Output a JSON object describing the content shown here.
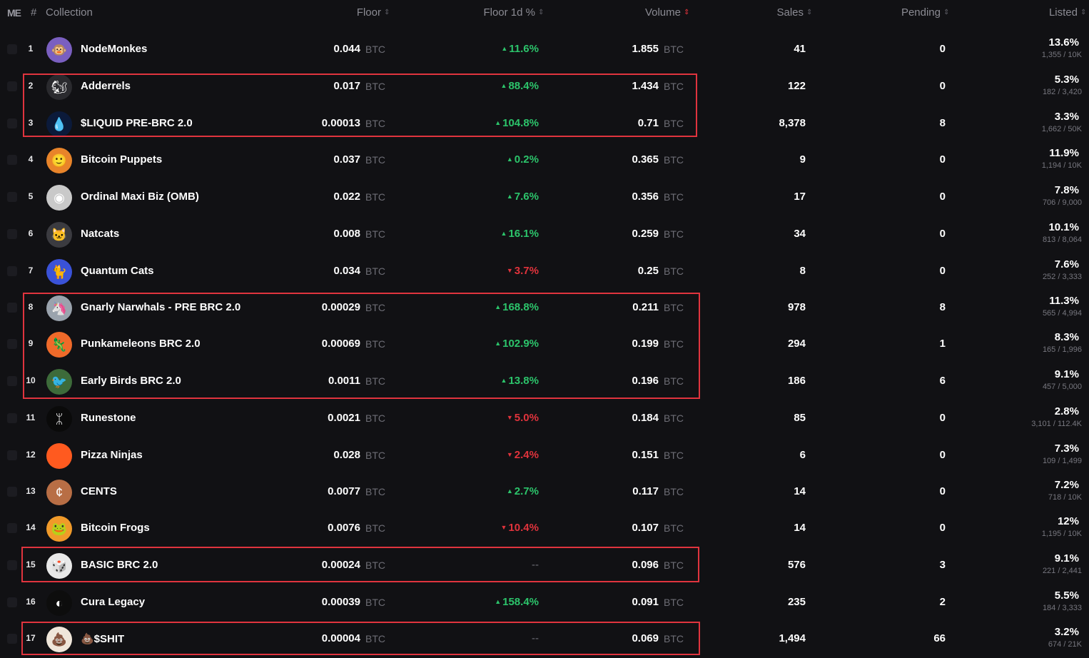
{
  "header": {
    "logo": "ME",
    "rank": "#",
    "collection": "Collection",
    "floor": "Floor",
    "floor_1d": "Floor 1d %",
    "volume": "Volume",
    "sales": "Sales",
    "pending": "Pending",
    "listed": "Listed"
  },
  "currency": "BTC",
  "colors": {
    "background": "#111114",
    "up": "#2cc46b",
    "down": "#e0333c",
    "highlight": "#e0343e",
    "muted": "#6d6d75"
  },
  "rows": [
    {
      "rank": "1",
      "name": "NodeMonkes",
      "floor": "0.044",
      "change": "11.6%",
      "dir": "up",
      "volume": "1.855",
      "sales": "41",
      "pending": "0",
      "listed_pct": "13.6%",
      "listed_detail": "1,355 / 10K",
      "avatar_icon": "monkey-icon"
    },
    {
      "rank": "2",
      "name": "Adderrels",
      "floor": "0.017",
      "change": "88.4%",
      "dir": "up",
      "volume": "1.434",
      "sales": "122",
      "pending": "0",
      "listed_pct": "5.3%",
      "listed_detail": "182 / 3,420",
      "avatar_icon": "squirrel-icon"
    },
    {
      "rank": "3",
      "name": "$LIQUID PRE-BRC 2.0",
      "floor": "0.00013",
      "change": "104.8%",
      "dir": "up",
      "volume": "0.71",
      "sales": "8,378",
      "pending": "8",
      "listed_pct": "3.3%",
      "listed_detail": "1,662 / 50K",
      "avatar_icon": "droplet-icon"
    },
    {
      "rank": "4",
      "name": "Bitcoin Puppets",
      "floor": "0.037",
      "change": "0.2%",
      "dir": "up",
      "volume": "0.365",
      "sales": "9",
      "pending": "0",
      "listed_pct": "11.9%",
      "listed_detail": "1,194 / 10K",
      "avatar_icon": "puppet-icon"
    },
    {
      "rank": "5",
      "name": "Ordinal Maxi Biz (OMB)",
      "floor": "0.022",
      "change": "7.6%",
      "dir": "up",
      "volume": "0.356",
      "sales": "17",
      "pending": "0",
      "listed_pct": "7.8%",
      "listed_detail": "706 / 9,000",
      "avatar_icon": "omb-icon"
    },
    {
      "rank": "6",
      "name": "Natcats",
      "floor": "0.008",
      "change": "16.1%",
      "dir": "up",
      "volume": "0.259",
      "sales": "34",
      "pending": "0",
      "listed_pct": "10.1%",
      "listed_detail": "813 / 8,064",
      "avatar_icon": "cat-icon"
    },
    {
      "rank": "7",
      "name": "Quantum Cats",
      "floor": "0.034",
      "change": "3.7%",
      "dir": "down",
      "volume": "0.25",
      "sales": "8",
      "pending": "0",
      "listed_pct": "7.6%",
      "listed_detail": "252 / 3,333",
      "avatar_icon": "quantum-cat-icon"
    },
    {
      "rank": "8",
      "name": "Gnarly Narwhals - PRE BRC 2.0",
      "floor": "0.00029",
      "change": "168.8%",
      "dir": "up",
      "volume": "0.211",
      "sales": "978",
      "pending": "8",
      "listed_pct": "11.3%",
      "listed_detail": "565 / 4,994",
      "avatar_icon": "narwhal-icon"
    },
    {
      "rank": "9",
      "name": "Punkameleons BRC 2.0",
      "floor": "0.00069",
      "change": "102.9%",
      "dir": "up",
      "volume": "0.199",
      "sales": "294",
      "pending": "1",
      "listed_pct": "8.3%",
      "listed_detail": "165 / 1,996",
      "avatar_icon": "chameleon-icon"
    },
    {
      "rank": "10",
      "name": "Early Birds BRC 2.0",
      "floor": "0.0011",
      "change": "13.8%",
      "dir": "up",
      "volume": "0.196",
      "sales": "186",
      "pending": "6",
      "listed_pct": "9.1%",
      "listed_detail": "457 / 5,000",
      "avatar_icon": "bird-icon"
    },
    {
      "rank": "11",
      "name": "Runestone",
      "floor": "0.0021",
      "change": "5.0%",
      "dir": "down",
      "volume": "0.184",
      "sales": "85",
      "pending": "0",
      "listed_pct": "2.8%",
      "listed_detail": "3,101 / 112.4K",
      "avatar_icon": "rune-icon"
    },
    {
      "rank": "12",
      "name": "Pizza Ninjas",
      "floor": "0.028",
      "change": "2.4%",
      "dir": "down",
      "volume": "0.151",
      "sales": "6",
      "pending": "0",
      "listed_pct": "7.3%",
      "listed_detail": "109 / 1,499",
      "avatar_icon": "pizza-icon"
    },
    {
      "rank": "13",
      "name": "CENTS",
      "floor": "0.0077",
      "change": "2.7%",
      "dir": "up",
      "volume": "0.117",
      "sales": "14",
      "pending": "0",
      "listed_pct": "7.2%",
      "listed_detail": "718 / 10K",
      "avatar_icon": "coin-icon"
    },
    {
      "rank": "14",
      "name": "Bitcoin Frogs",
      "floor": "0.0076",
      "change": "10.4%",
      "dir": "down",
      "volume": "0.107",
      "sales": "14",
      "pending": "0",
      "listed_pct": "12%",
      "listed_detail": "1,195 / 10K",
      "avatar_icon": "frog-icon"
    },
    {
      "rank": "15",
      "name": "BASIC BRC 2.0",
      "floor": "0.00024",
      "change": "--",
      "dir": "none",
      "volume": "0.096",
      "sales": "576",
      "pending": "3",
      "listed_pct": "9.1%",
      "listed_detail": "221 / 2,441",
      "avatar_icon": "dice-icon"
    },
    {
      "rank": "16",
      "name": "Cura Legacy",
      "floor": "0.00039",
      "change": "158.4%",
      "dir": "up",
      "volume": "0.091",
      "sales": "235",
      "pending": "2",
      "listed_pct": "5.5%",
      "listed_detail": "184 / 3,333",
      "avatar_icon": "mask-icon"
    },
    {
      "rank": "17",
      "name": "💩$SHIT",
      "floor": "0.00004",
      "change": "--",
      "dir": "none",
      "volume": "0.069",
      "sales": "1,494",
      "pending": "66",
      "listed_pct": "3.2%",
      "listed_detail": "674 / 21K",
      "avatar_icon": "shit-icon"
    }
  ],
  "avatars": {
    "monkey-icon": {
      "bg": "#7a5fc0",
      "glyph": "🐵"
    },
    "squirrel-icon": {
      "bg": "#2a2a2e",
      "glyph": "🐿"
    },
    "droplet-icon": {
      "bg": "#0b1a3a",
      "glyph": "💧"
    },
    "puppet-icon": {
      "bg": "#e8842a",
      "glyph": "🙂"
    },
    "omb-icon": {
      "bg": "#c9c9c9",
      "glyph": "◉"
    },
    "cat-icon": {
      "bg": "#3b3b40",
      "glyph": "🐱"
    },
    "quantum-cat-icon": {
      "bg": "#3a52d8",
      "glyph": "🐈"
    },
    "narwhal-icon": {
      "bg": "#9aa3ad",
      "glyph": "🦄"
    },
    "chameleon-icon": {
      "bg": "#ef6a2a",
      "glyph": "🦎"
    },
    "bird-icon": {
      "bg": "#3d6b3a",
      "glyph": "🐦"
    },
    "rune-icon": {
      "bg": "#0a0a0a",
      "glyph": "ᛯ"
    },
    "pizza-icon": {
      "bg": "#ff5a1f",
      "glyph": ""
    },
    "coin-icon": {
      "bg": "#b86e45",
      "glyph": "¢"
    },
    "frog-icon": {
      "bg": "#f09a2a",
      "glyph": "🐸"
    },
    "dice-icon": {
      "bg": "#e8e8e8",
      "glyph": "🎲"
    },
    "mask-icon": {
      "bg": "#0d0d0d",
      "glyph": "◐"
    },
    "shit-icon": {
      "bg": "#efe6da",
      "glyph": "💩"
    }
  }
}
